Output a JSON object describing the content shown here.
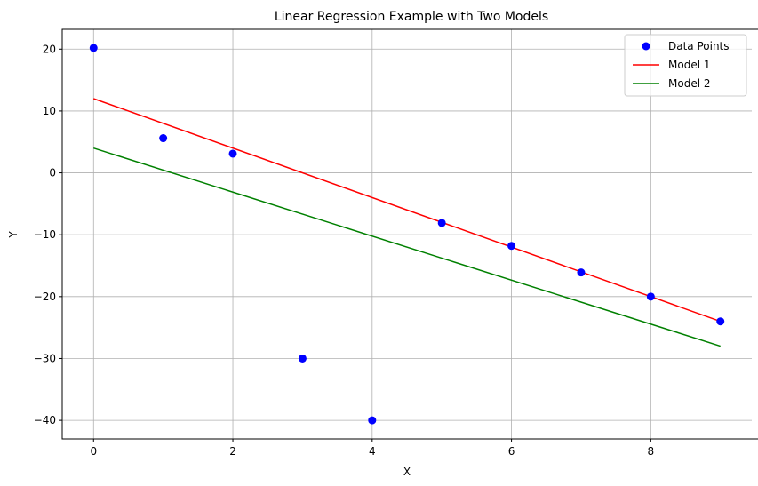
{
  "chart_data": {
    "type": "scatter",
    "title": "Linear Regression Example with Two Models",
    "xlabel": "X",
    "ylabel": "Y",
    "xlim": [
      -0.45,
      9.45
    ],
    "ylim": [
      -43.0,
      23.2
    ],
    "xticks": [
      0,
      2,
      4,
      6,
      8
    ],
    "yticks": [
      -40,
      -30,
      -20,
      -10,
      0,
      10,
      20
    ],
    "grid": true,
    "legend_position": "top-right",
    "scatter": {
      "name": "Data Points",
      "color": "#0000ff",
      "x": [
        0,
        1,
        2,
        3,
        4,
        5,
        6,
        7,
        8,
        9
      ],
      "y": [
        20.2,
        5.6,
        3.1,
        -30.0,
        -40.0,
        -8.1,
        -11.8,
        -16.1,
        -20.0,
        -24.0
      ]
    },
    "lines": [
      {
        "name": "Model 1",
        "color": "#ff0000",
        "x": [
          0,
          9
        ],
        "y": [
          12,
          -24
        ]
      },
      {
        "name": "Model 2",
        "color": "#008000",
        "x": [
          0,
          9
        ],
        "y": [
          4,
          -28
        ]
      }
    ]
  }
}
